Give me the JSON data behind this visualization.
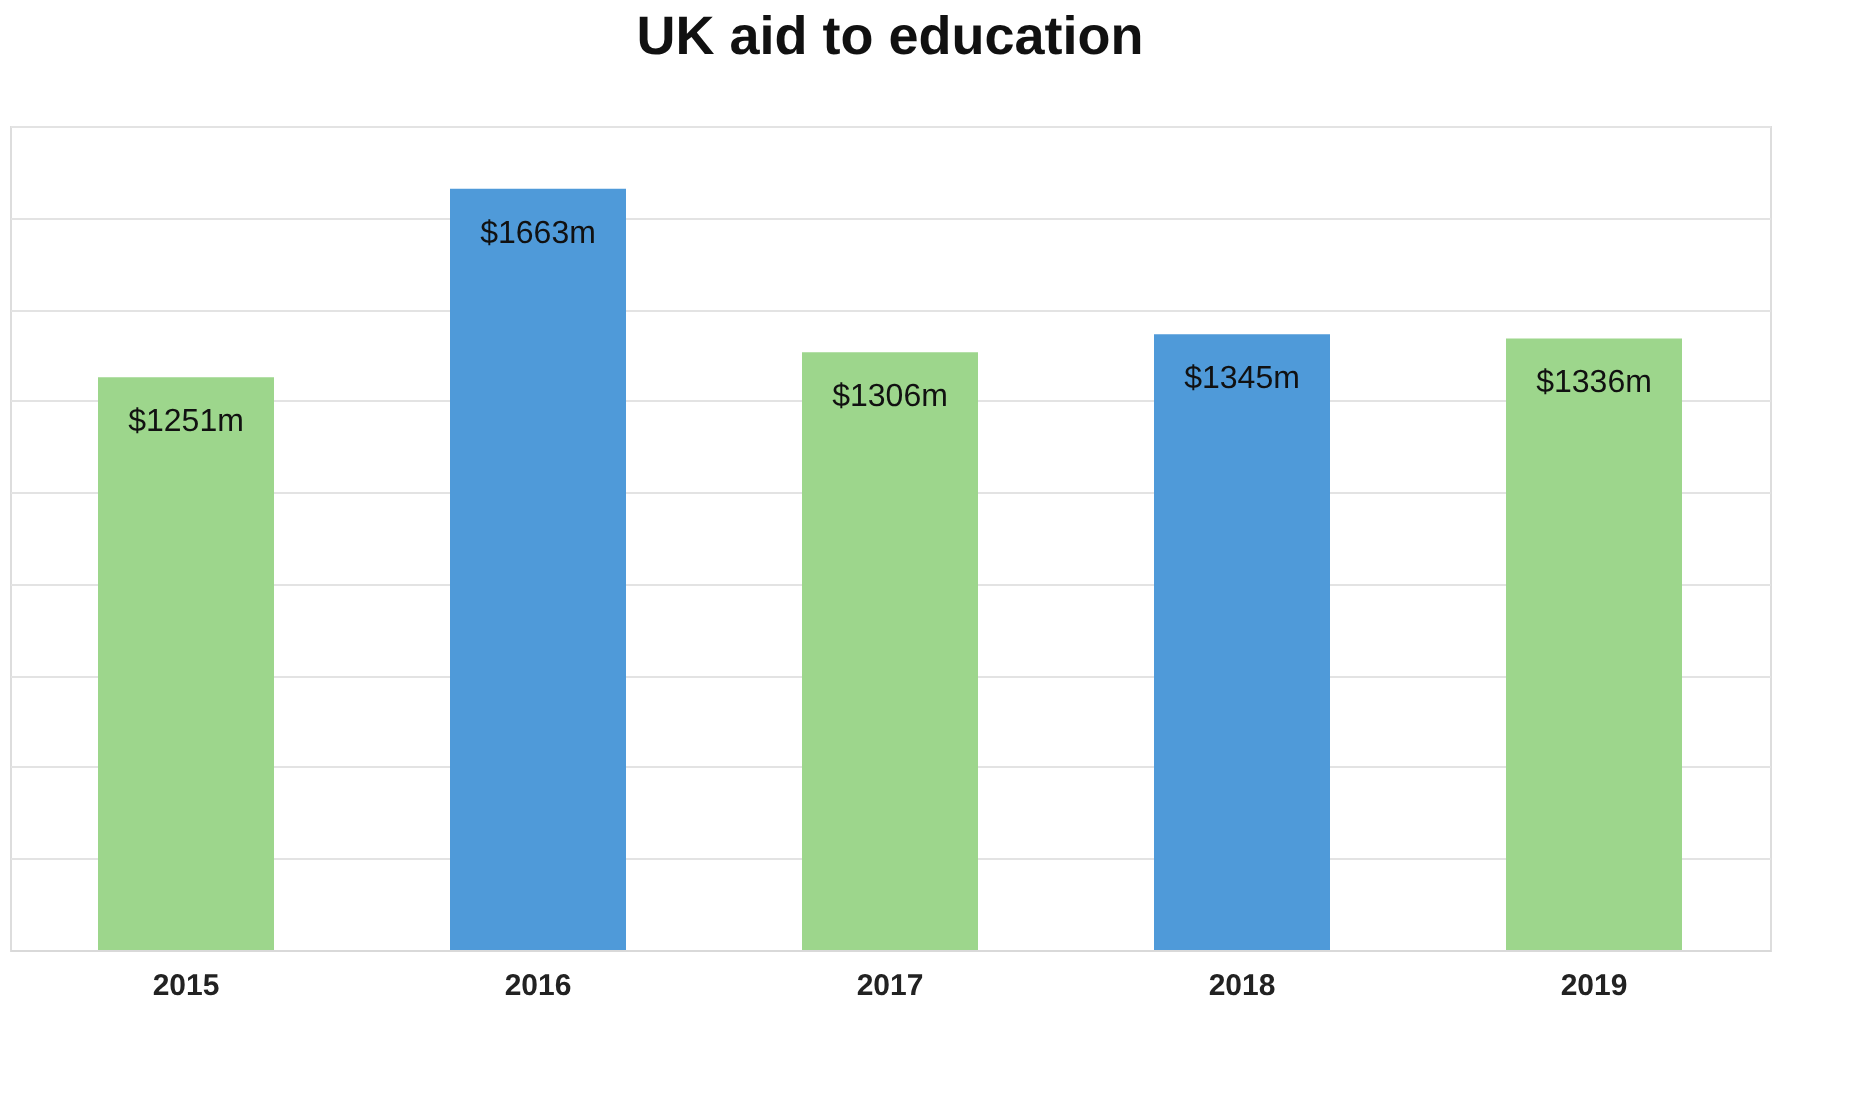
{
  "chart_data": {
    "type": "bar",
    "title": "UK aid to education",
    "categories": [
      "2015",
      "2016",
      "2017",
      "2018",
      "2019"
    ],
    "values": [
      1251,
      1663,
      1306,
      1345,
      1336
    ],
    "colors": [
      "#9dd68c",
      "#4f9ad9",
      "#9dd68c",
      "#4f9ad9",
      "#9dd68c"
    ],
    "value_labels": [
      "$1251m",
      "$1663m",
      "$1306m",
      "$1345m",
      "$1336m"
    ],
    "ylim": [
      0,
      1800
    ],
    "yticks": [
      {
        "value": 0,
        "label": null
      },
      {
        "value": 200,
        "label": null
      },
      {
        "value": 400,
        "label": null
      },
      {
        "value": 600,
        "label": null
      },
      {
        "value": 800,
        "label": null
      },
      {
        "value": 1000,
        "label": null
      },
      {
        "value": 1200,
        "label": null
      },
      {
        "value": 1400,
        "label": null
      },
      {
        "value": 1600,
        "label": null
      },
      {
        "value": 1800,
        "label": null
      }
    ],
    "grid": "y",
    "tick_labels": "x"
  }
}
